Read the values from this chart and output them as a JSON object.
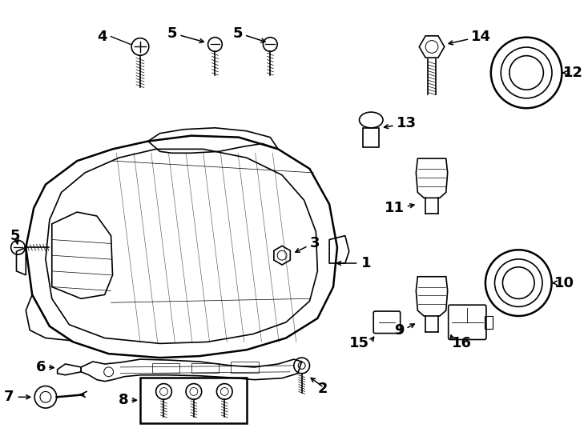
{
  "bg_color": "#ffffff",
  "line_color": "#000000",
  "fig_width": 7.34,
  "fig_height": 5.4
}
